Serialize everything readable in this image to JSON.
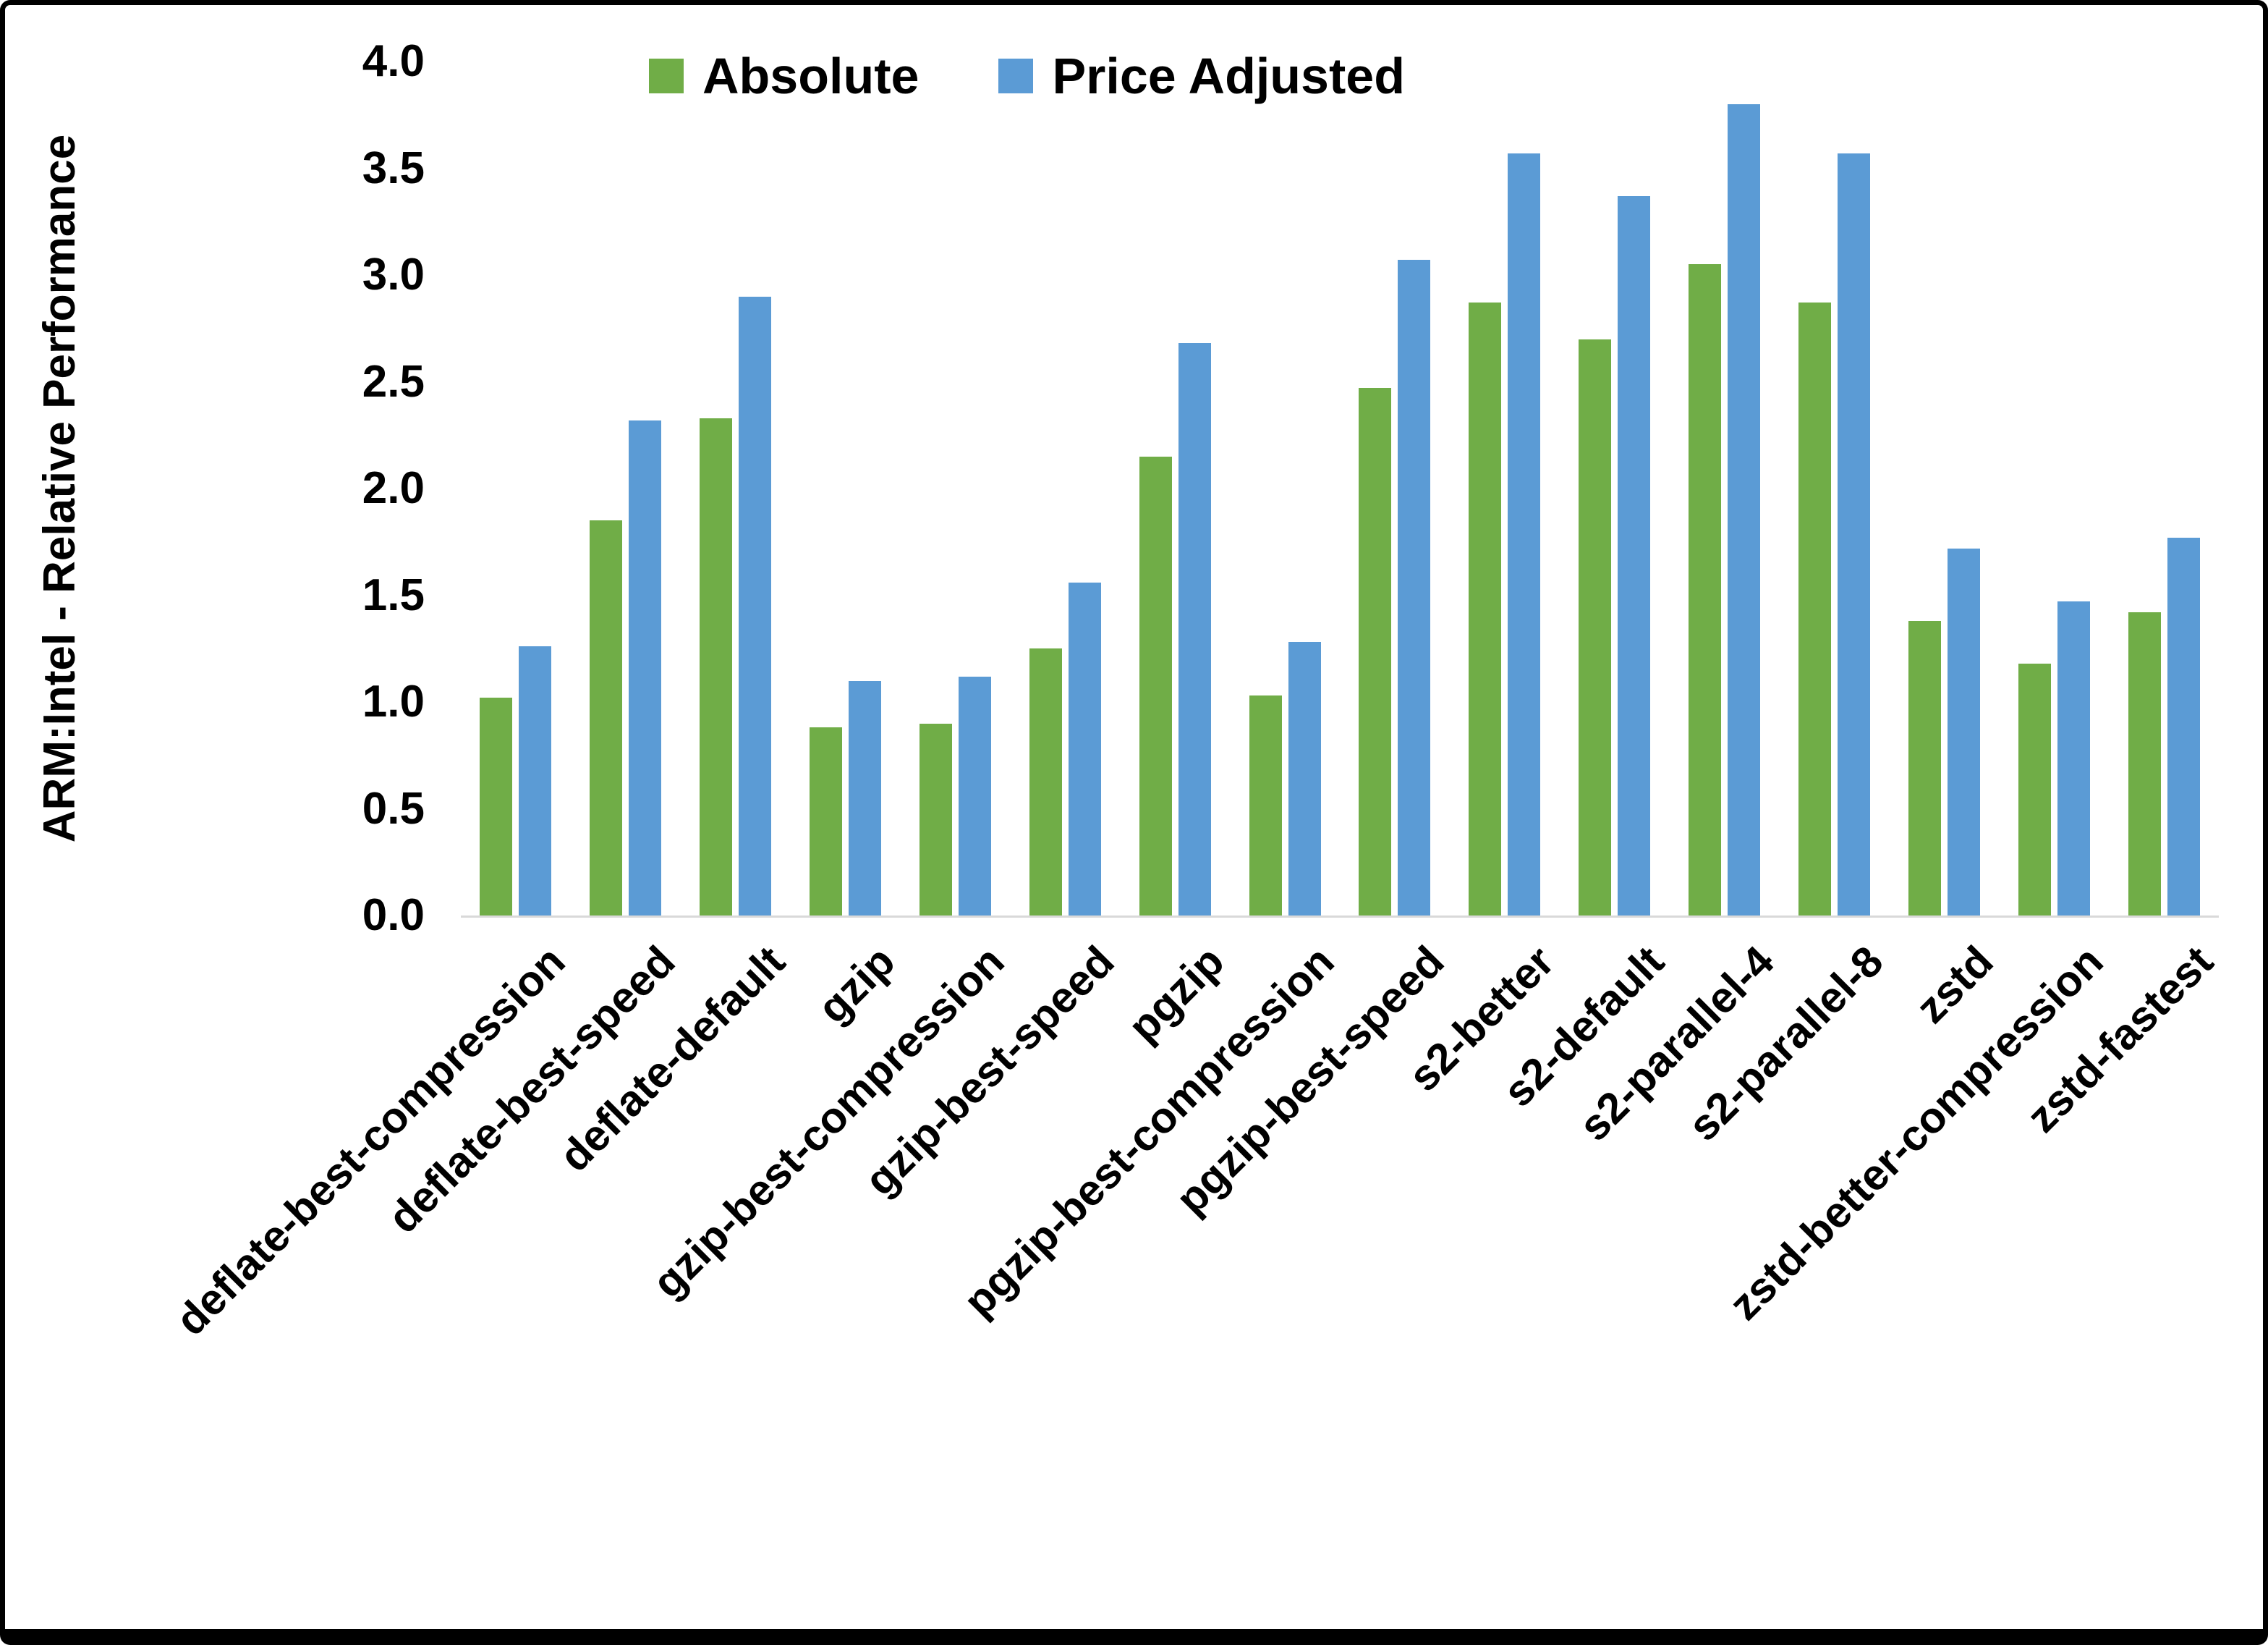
{
  "chart_data": {
    "type": "bar",
    "title": "",
    "xlabel": "",
    "ylabel": "ARM:Intel - Relative Performance",
    "ylim": [
      0,
      4.0
    ],
    "ytick_step": 0.5,
    "yticks": [
      "0.0",
      "0.5",
      "1.0",
      "1.5",
      "2.0",
      "2.5",
      "3.0",
      "3.5",
      "4.0"
    ],
    "grid": false,
    "legend_position": "top",
    "categories": [
      "deflate-best-compression",
      "deflate-best-speed",
      "deflate-default",
      "gzip",
      "gzip-best-compression",
      "gzip-best-speed",
      "pgzip",
      "pgzip-best-compression",
      "pgzip-best-speed",
      "s2-better",
      "s2-default",
      "s2-parallel-4",
      "s2-parallel-8",
      "zstd",
      "zstd-better-compression",
      "zstd-fastest"
    ],
    "series": [
      {
        "name": "Absolute",
        "color": "#70AD47",
        "values": [
          1.02,
          1.85,
          2.33,
          0.88,
          0.9,
          1.25,
          2.15,
          1.03,
          2.47,
          2.87,
          2.7,
          3.05,
          2.87,
          1.38,
          1.18,
          1.42
        ]
      },
      {
        "name": "Price Adjusted",
        "color": "#5B9BD5",
        "values": [
          1.26,
          2.32,
          2.9,
          1.1,
          1.12,
          1.56,
          2.68,
          1.28,
          3.07,
          3.57,
          3.37,
          3.8,
          3.57,
          1.72,
          1.47,
          1.77
        ]
      }
    ]
  }
}
